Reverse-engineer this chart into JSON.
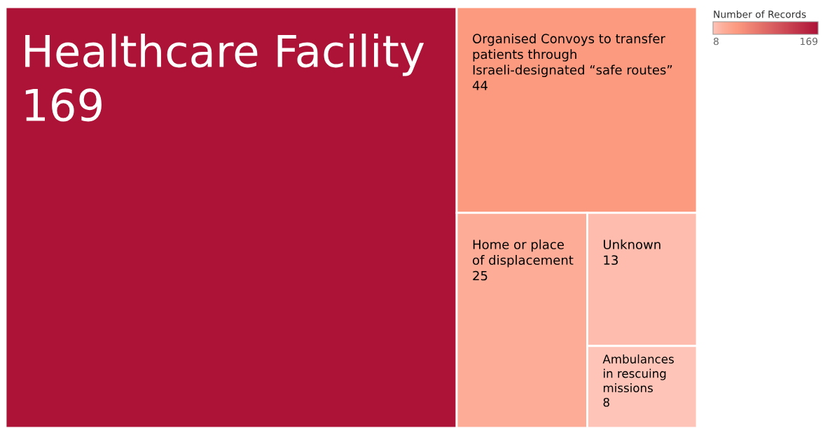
{
  "chart_data": {
    "type": "other",
    "categories": [
      "Healthcare Facility",
      "Organised Convoys to transfer patients through Israeli-designated “safe routes”",
      "Home or place of displacement",
      "Unknown",
      "Ambulances in rescuing missions"
    ],
    "values": [
      169,
      44,
      25,
      13,
      8
    ],
    "colors": [
      "#ad1237",
      "#fc9a80",
      "#fdac98",
      "#fdbcad",
      "#fec4b7"
    ],
    "data_labels": true,
    "clabel": "Number of Records",
    "annotations": [
      "8",
      "169"
    ]
  }
}
